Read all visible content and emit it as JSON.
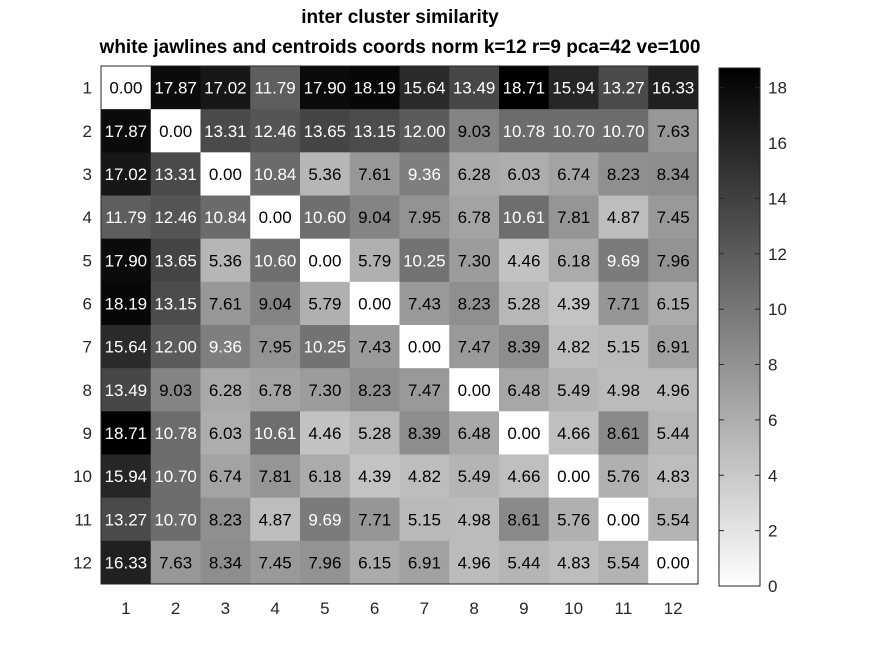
{
  "chart_data": {
    "type": "heatmap",
    "title": "inter cluster similarity",
    "subtitle": "white jawlines and centroids coords norm k=12 r=9 pca=42 ve=100",
    "x_ticks": [
      "1",
      "2",
      "3",
      "4",
      "5",
      "6",
      "7",
      "8",
      "9",
      "10",
      "11",
      "12"
    ],
    "y_ticks": [
      "1",
      "2",
      "3",
      "4",
      "5",
      "6",
      "7",
      "8",
      "9",
      "10",
      "11",
      "12"
    ],
    "colormap": "gray-reversed",
    "color_min_hex": "#ffffff",
    "color_max_hex": "#000000",
    "clim": [
      0,
      18.71
    ],
    "colorbar_ticks": [
      "0",
      "2",
      "4",
      "6",
      "8",
      "10",
      "12",
      "14",
      "16",
      "18"
    ],
    "values": [
      [
        "0.00",
        "17.87",
        "17.02",
        "11.79",
        "17.90",
        "18.19",
        "15.64",
        "13.49",
        "18.71",
        "15.94",
        "13.27",
        "16.33"
      ],
      [
        "17.87",
        "0.00",
        "13.31",
        "12.46",
        "13.65",
        "13.15",
        "12.00",
        "9.03",
        "10.78",
        "10.70",
        "10.70",
        "7.63"
      ],
      [
        "17.02",
        "13.31",
        "0.00",
        "10.84",
        "5.36",
        "7.61",
        "9.36",
        "6.28",
        "6.03",
        "6.74",
        "8.23",
        "8.34"
      ],
      [
        "11.79",
        "12.46",
        "10.84",
        "0.00",
        "10.60",
        "9.04",
        "7.95",
        "6.78",
        "10.61",
        "7.81",
        "4.87",
        "7.45"
      ],
      [
        "17.90",
        "13.65",
        "5.36",
        "10.60",
        "0.00",
        "5.79",
        "10.25",
        "7.30",
        "4.46",
        "6.18",
        "9.69",
        "7.96"
      ],
      [
        "18.19",
        "13.15",
        "7.61",
        "9.04",
        "5.79",
        "0.00",
        "7.43",
        "8.23",
        "5.28",
        "4.39",
        "7.71",
        "6.15"
      ],
      [
        "15.64",
        "12.00",
        "9.36",
        "7.95",
        "10.25",
        "7.43",
        "0.00",
        "7.47",
        "8.39",
        "4.82",
        "5.15",
        "6.91"
      ],
      [
        "13.49",
        "9.03",
        "6.28",
        "6.78",
        "7.30",
        "8.23",
        "7.47",
        "0.00",
        "6.48",
        "5.49",
        "4.98",
        "4.96"
      ],
      [
        "18.71",
        "10.78",
        "6.03",
        "10.61",
        "4.46",
        "5.28",
        "8.39",
        "6.48",
        "0.00",
        "4.66",
        "8.61",
        "5.44"
      ],
      [
        "15.94",
        "10.70",
        "6.74",
        "7.81",
        "6.18",
        "4.39",
        "4.82",
        "5.49",
        "4.66",
        "0.00",
        "5.76",
        "4.83"
      ],
      [
        "13.27",
        "10.70",
        "8.23",
        "4.87",
        "9.69",
        "7.71",
        "5.15",
        "4.98",
        "8.61",
        "5.76",
        "0.00",
        "5.54"
      ],
      [
        "16.33",
        "7.63",
        "8.34",
        "7.45",
        "7.96",
        "6.15",
        "6.91",
        "4.96",
        "5.44",
        "4.83",
        "5.54",
        "0.00"
      ]
    ]
  }
}
